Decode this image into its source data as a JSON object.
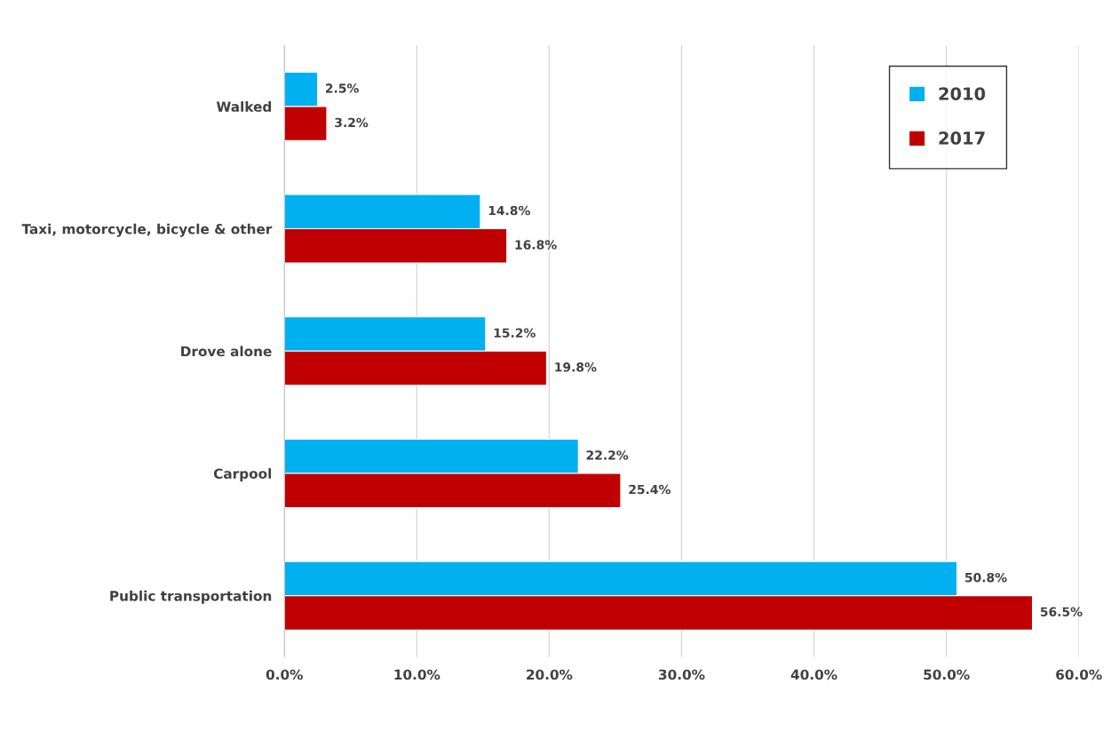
{
  "chart_data": {
    "type": "bar",
    "orientation": "horizontal",
    "categories": [
      "Walked",
      "Taxi, motorcycle, bicycle & other",
      "Drove alone",
      "Carpool",
      "Public transportation"
    ],
    "series": [
      {
        "name": "2010",
        "color": "#00b0f0",
        "values": [
          2.5,
          14.8,
          15.2,
          22.2,
          50.8
        ],
        "value_labels": [
          "2.5%",
          "14.8%",
          "15.2%",
          "22.2%",
          "50.8%"
        ]
      },
      {
        "name": "2017",
        "color": "#c00000",
        "values": [
          3.2,
          16.8,
          19.8,
          25.4,
          56.5
        ],
        "value_labels": [
          "3.2%",
          "16.8%",
          "19.8%",
          "25.4%",
          "56.5%"
        ]
      }
    ],
    "xlim": [
      0,
      60
    ],
    "xticks": [
      {
        "value": 0,
        "label": "0.0%"
      },
      {
        "value": 10,
        "label": "10.0%"
      },
      {
        "value": 20,
        "label": "20.0%"
      },
      {
        "value": 30,
        "label": "30.0%"
      },
      {
        "value": 40,
        "label": "40.0%"
      },
      {
        "value": 50,
        "label": "50.0%"
      },
      {
        "value": 60,
        "label": "60.0%"
      }
    ],
    "grid": "x",
    "legend": "top right"
  }
}
